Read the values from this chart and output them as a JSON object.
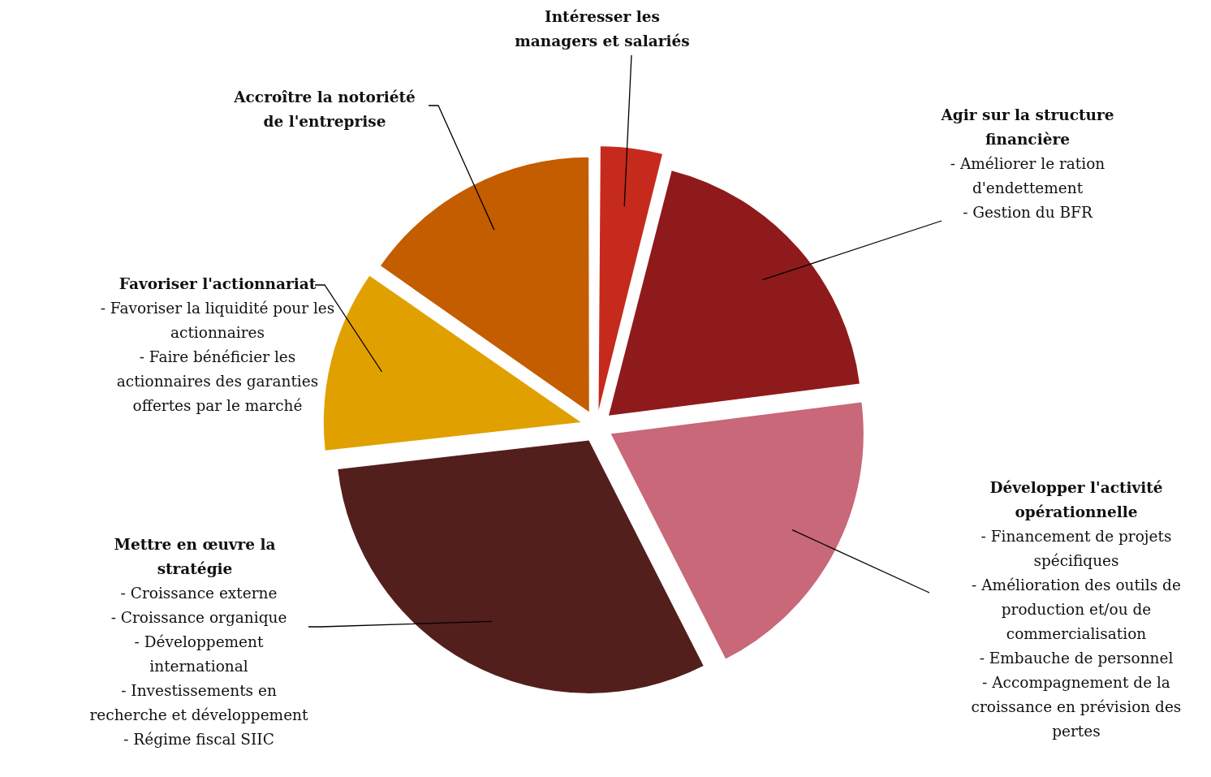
{
  "chart_data": {
    "type": "pie",
    "categories": [
      "Intéresser les managers et salariés",
      "Agir sur la structure financière",
      "Développer l'activité opérationnelle",
      "Mettre en œuvre la stratégie",
      "Favoriser l'actionnariat",
      "Accroître la notoriété de l'entreprise"
    ],
    "values": [
      4,
      19,
      19.5,
      30.7,
      11.5,
      15.3
    ],
    "colors": [
      "#c62a1c",
      "#8f1a1c",
      "#c86878",
      "#531f1d",
      "#e0a000",
      "#c45c00"
    ],
    "annotations": [
      {
        "text": "- Améliorer le ration d'endettement",
        "x": "Agir sur la structure financière"
      },
      {
        "text": "- Gestion du BFR",
        "x": "Agir sur la structure financière"
      },
      {
        "text": "- Financement de projets spécifiques",
        "x": "Développer l'activité opérationnelle"
      },
      {
        "text": "- Amélioration des outils de production et/ou de commercialisation",
        "x": "Développer l'activité opérationnelle"
      },
      {
        "text": "- Embauche de personnel",
        "x": "Développer l'activité opérationnelle"
      },
      {
        "text": "- Accompagnement de la croissance en prévision des pertes",
        "x": "Développer l'activité opérationnelle"
      },
      {
        "text": "- Croissance externe",
        "x": "Mettre en œuvre la stratégie"
      },
      {
        "text": "- Croissance organique",
        "x": "Mettre en œuvre la stratégie"
      },
      {
        "text": "- Développement international",
        "x": "Mettre en œuvre la stratégie"
      },
      {
        "text": "- Investissements en recherche et développement",
        "x": "Mettre en œuvre la stratégie"
      },
      {
        "text": "- Régime fiscal SIIC",
        "x": "Mettre en œuvre la stratégie"
      },
      {
        "text": "- Favoriser la liquidité pour les actionnaires",
        "x": "Favoriser l'actionnariat"
      },
      {
        "text": "- Faire bénéficier les actionnaires des garanties offertes par le marché",
        "x": "Favoriser l'actionnariat"
      }
    ]
  }
}
